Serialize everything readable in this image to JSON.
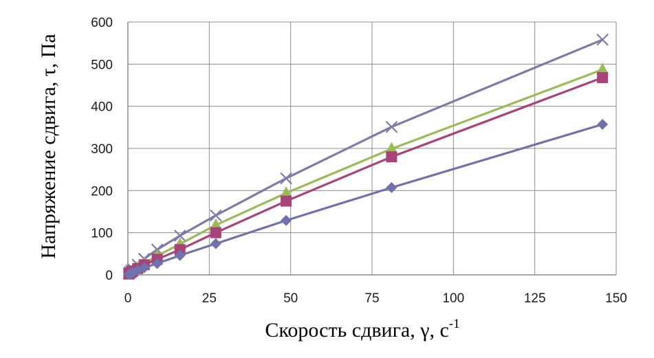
{
  "chart_data": {
    "type": "line",
    "xlabel_text": "Скорость сдвига, γ, с",
    "xlabel_sup": "-1",
    "ylabel": "Напряжение сдвига, τ, Па",
    "xlim": [
      0,
      150
    ],
    "ylim": [
      0,
      600
    ],
    "x_ticks": [
      "0",
      "25",
      "50",
      "75",
      "100",
      "125",
      "150"
    ],
    "y_ticks": [
      "0",
      "100",
      "200",
      "300",
      "400",
      "500",
      "600"
    ],
    "grid": true,
    "legend": "none",
    "series": [
      {
        "marker": "cross",
        "color": "#7b7aa9",
        "x": [
          0.3,
          0.5,
          1,
          1.5,
          3,
          5,
          9,
          16,
          27,
          48.6,
          81,
          145.8
        ],
        "y": [
          3,
          6,
          10,
          14,
          24,
          38,
          60,
          93,
          141,
          229,
          351,
          558
        ]
      },
      {
        "marker": "triangle",
        "color": "#9bbb59",
        "x": [
          0.3,
          0.5,
          1,
          1.5,
          3,
          5,
          9,
          16,
          27,
          48.6,
          81,
          145.8
        ],
        "y": [
          2,
          4,
          7,
          10,
          17,
          27,
          45,
          73,
          118,
          194,
          299,
          487
        ]
      },
      {
        "marker": "square",
        "color": "#a8437a",
        "x": [
          0.3,
          0.5,
          1,
          1.5,
          3,
          5,
          9,
          16,
          27,
          48.6,
          81,
          145.8
        ],
        "y": [
          2,
          3,
          6,
          9,
          15,
          24,
          37,
          60,
          100,
          175,
          280,
          468
        ]
      },
      {
        "marker": "diamond",
        "color": "#7072ad",
        "x": [
          0.3,
          0.5,
          1,
          1.5,
          3,
          5,
          9,
          16,
          27,
          48.6,
          81,
          145.8
        ],
        "y": [
          1,
          2,
          4,
          6,
          11,
          17,
          27,
          46,
          74,
          129,
          207,
          357
        ]
      }
    ]
  }
}
